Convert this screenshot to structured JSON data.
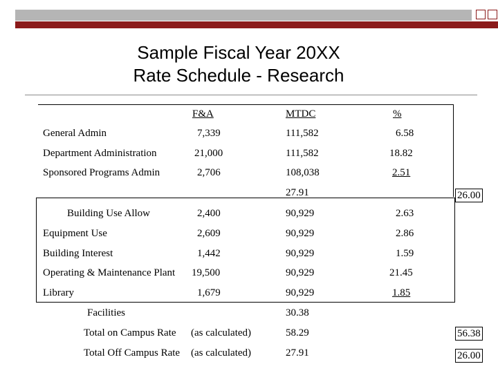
{
  "title": {
    "line1": "Sample Fiscal Year 20XX",
    "line2": "Rate Schedule - Research"
  },
  "headers": {
    "fa": "F&A",
    "mtdc": "MTDC",
    "pct": "%"
  },
  "rows": [
    {
      "label": "General Admin",
      "fa": "7,339",
      "mtdc": "111,582",
      "pct": "6.58"
    },
    {
      "label": "Department Administration",
      "fa": "21,000",
      "mtdc": "111,582",
      "pct": "18.82"
    },
    {
      "label": "Sponsored Programs Admin",
      "fa": "2,706",
      "mtdc": "108,038",
      "pct": "2.51"
    },
    {
      "label": "Building Use Allow",
      "fa": "2,400",
      "mtdc": "90,929",
      "pct": "2.63"
    },
    {
      "label": "Equipment Use",
      "fa": "2,609",
      "mtdc": "90,929",
      "pct": "2.86"
    },
    {
      "label": "Building Interest",
      "fa": "1,442",
      "mtdc": "90,929",
      "pct": "1.59"
    },
    {
      "label": "Operating & Maintenance Plant",
      "fa": "19,500",
      "mtdc": "90,929",
      "pct": "21.45"
    },
    {
      "label": "Library",
      "fa": "1,679",
      "mtdc": "90,929",
      "pct": "1.85"
    }
  ],
  "admin_subtotal": {
    "value": "27.91",
    "capped": "26.00"
  },
  "facilities": {
    "label": "Facilities",
    "value": "30.38"
  },
  "totals": {
    "on_campus": {
      "label": "Total on Campus Rate",
      "note": "(as calculated)",
      "value": "58.29",
      "capped": "56.38"
    },
    "off_campus": {
      "label": "Total Off Campus Rate",
      "note": "(as calculated)",
      "value": "27.91",
      "capped": "26.00"
    }
  }
}
